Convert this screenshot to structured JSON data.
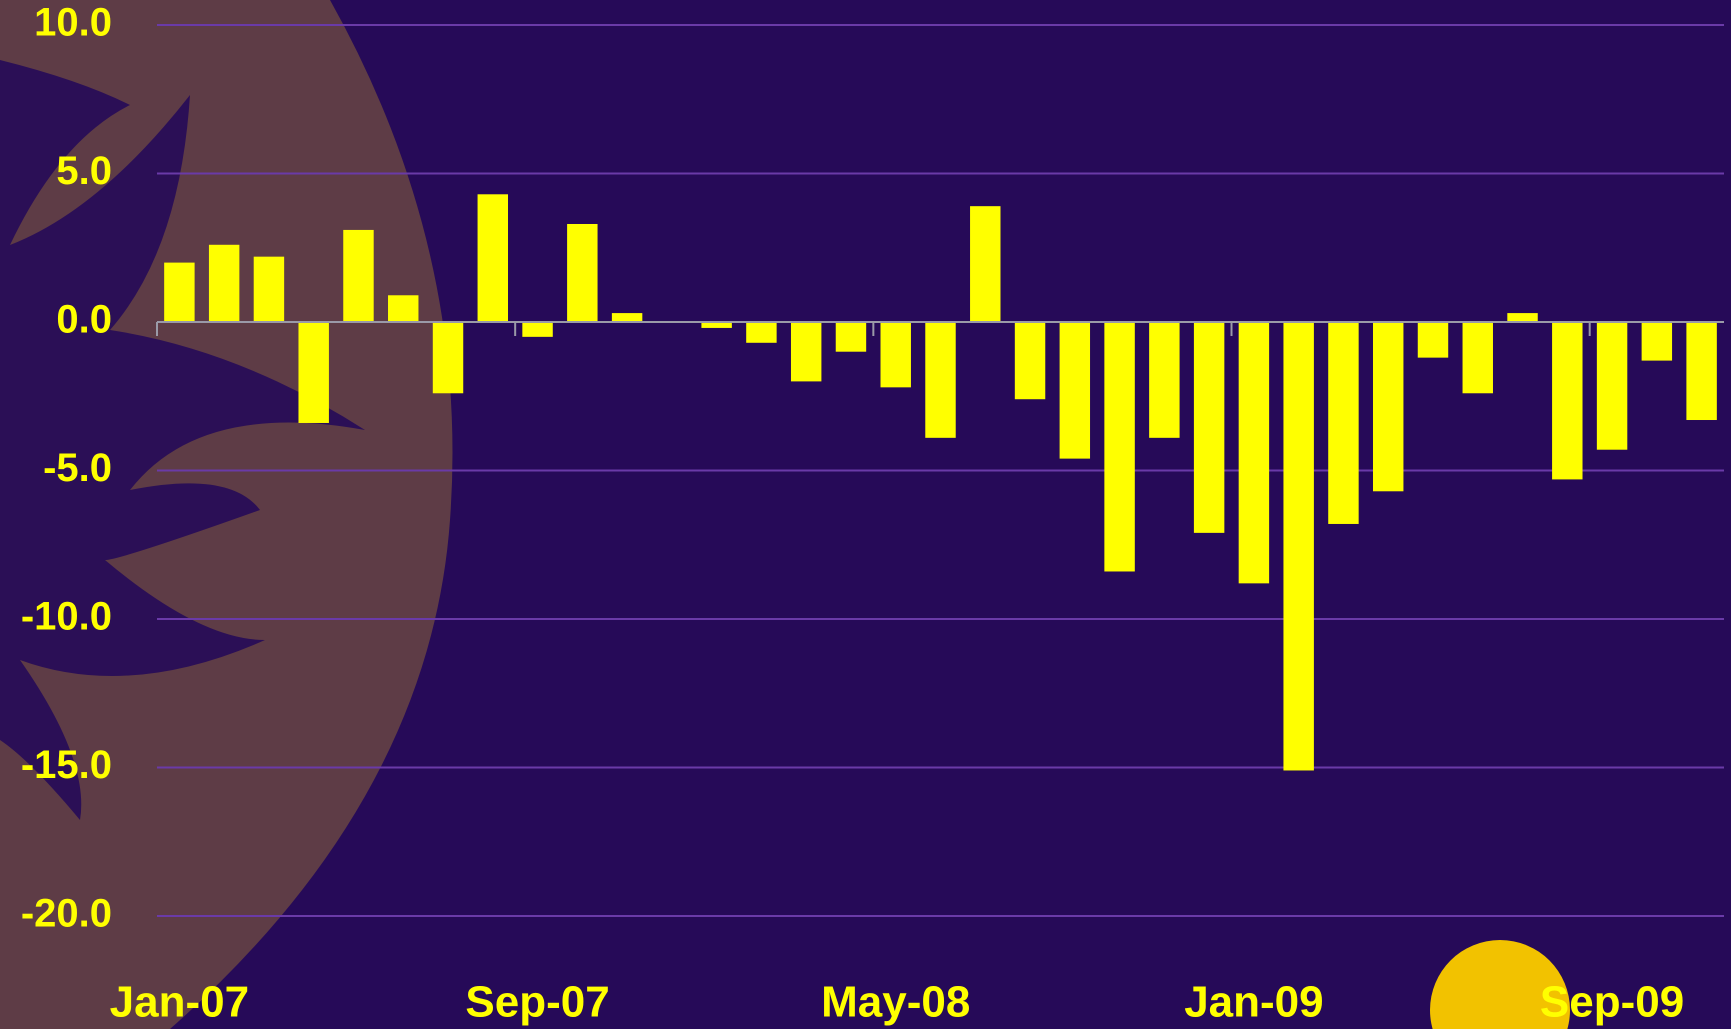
{
  "chart_data": {
    "type": "bar",
    "categories": [
      "Jan-07",
      null,
      null,
      null,
      null,
      null,
      null,
      null,
      "Sep-07",
      null,
      null,
      null,
      null,
      null,
      null,
      null,
      "May-08",
      null,
      null,
      null,
      null,
      null,
      null,
      null,
      "Jan-09",
      null,
      null,
      null,
      null,
      null,
      null,
      null,
      "Sep-09",
      null,
      null
    ],
    "values": [
      2.0,
      2.6,
      2.2,
      -3.4,
      3.1,
      0.9,
      -2.4,
      4.3,
      -0.5,
      3.3,
      0.3,
      0.0,
      -0.2,
      -0.7,
      -2.0,
      -1.0,
      -2.2,
      -3.9,
      3.9,
      -2.6,
      -4.6,
      -8.4,
      -3.9,
      -7.1,
      -8.8,
      -15.1,
      -6.8,
      -5.7,
      -1.2,
      -2.4,
      0.3,
      -5.3,
      -4.3,
      -1.3,
      -3.3
    ],
    "color": "#ffff00",
    "ylim": [
      -20,
      10
    ],
    "yticks": [
      {
        "value": -20,
        "label": "-20.0"
      },
      {
        "value": -15,
        "label": "-15.0"
      },
      {
        "value": -10,
        "label": "-10.0"
      },
      {
        "value": -5,
        "label": "-5.0"
      },
      {
        "value": 0,
        "label": "0.0"
      },
      {
        "value": 5,
        "label": "5.0"
      },
      {
        "value": 10,
        "label": "10.0"
      }
    ],
    "grid": true
  }
}
